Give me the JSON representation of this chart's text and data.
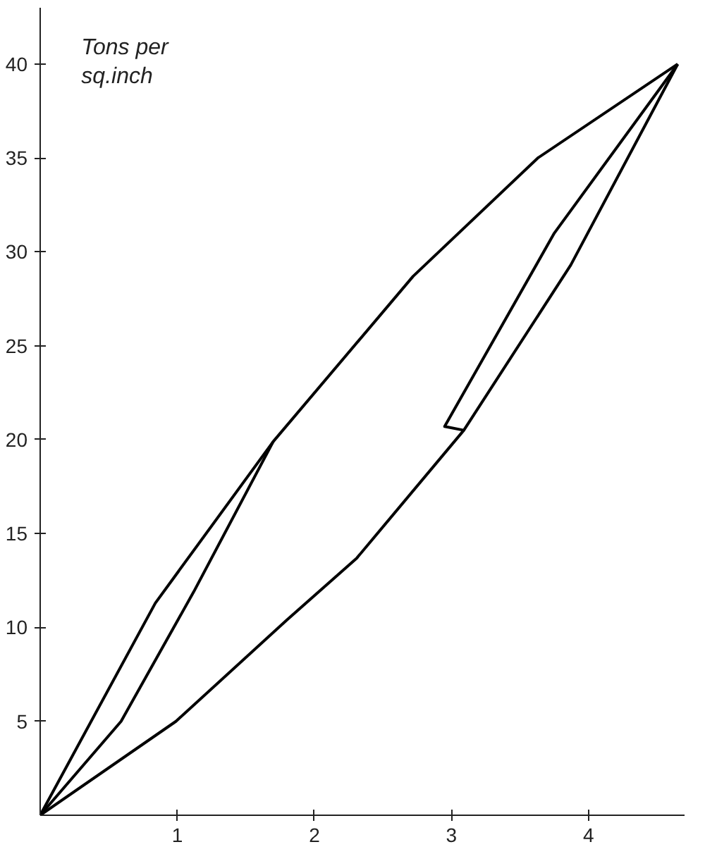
{
  "chart_data": {
    "type": "line",
    "ylabel": "Tons per sq.inch",
    "xlim": [
      0,
      4.7
    ],
    "ylim": [
      0,
      43
    ],
    "xticks": [
      1,
      2,
      3,
      4
    ],
    "yticks": [
      5,
      10,
      15,
      20,
      25,
      30,
      35,
      40
    ],
    "grid": false,
    "series": [
      {
        "color": "#000000",
        "x": [
          0,
          0.84,
          1.7,
          2.72,
          3.63,
          4.65
        ],
        "values": [
          0,
          11.3,
          19.9,
          28.7,
          35.0,
          40
        ]
      },
      {
        "color": "#000000",
        "x": [
          4.65,
          3.87,
          3.09,
          2.31,
          1.8,
          0.99,
          0
        ],
        "values": [
          40,
          29.3,
          20.5,
          13.7,
          10.4,
          5.0,
          0
        ]
      },
      {
        "color": "#000000",
        "x": [
          1.7,
          1.12,
          0.59,
          0
        ],
        "values": [
          19.9,
          11.9,
          5.0,
          0
        ]
      },
      {
        "color": "#000000",
        "x": [
          3.09,
          2.95,
          3.75,
          4.65
        ],
        "values": [
          20.5,
          20.7,
          31.0,
          40
        ]
      }
    ]
  }
}
